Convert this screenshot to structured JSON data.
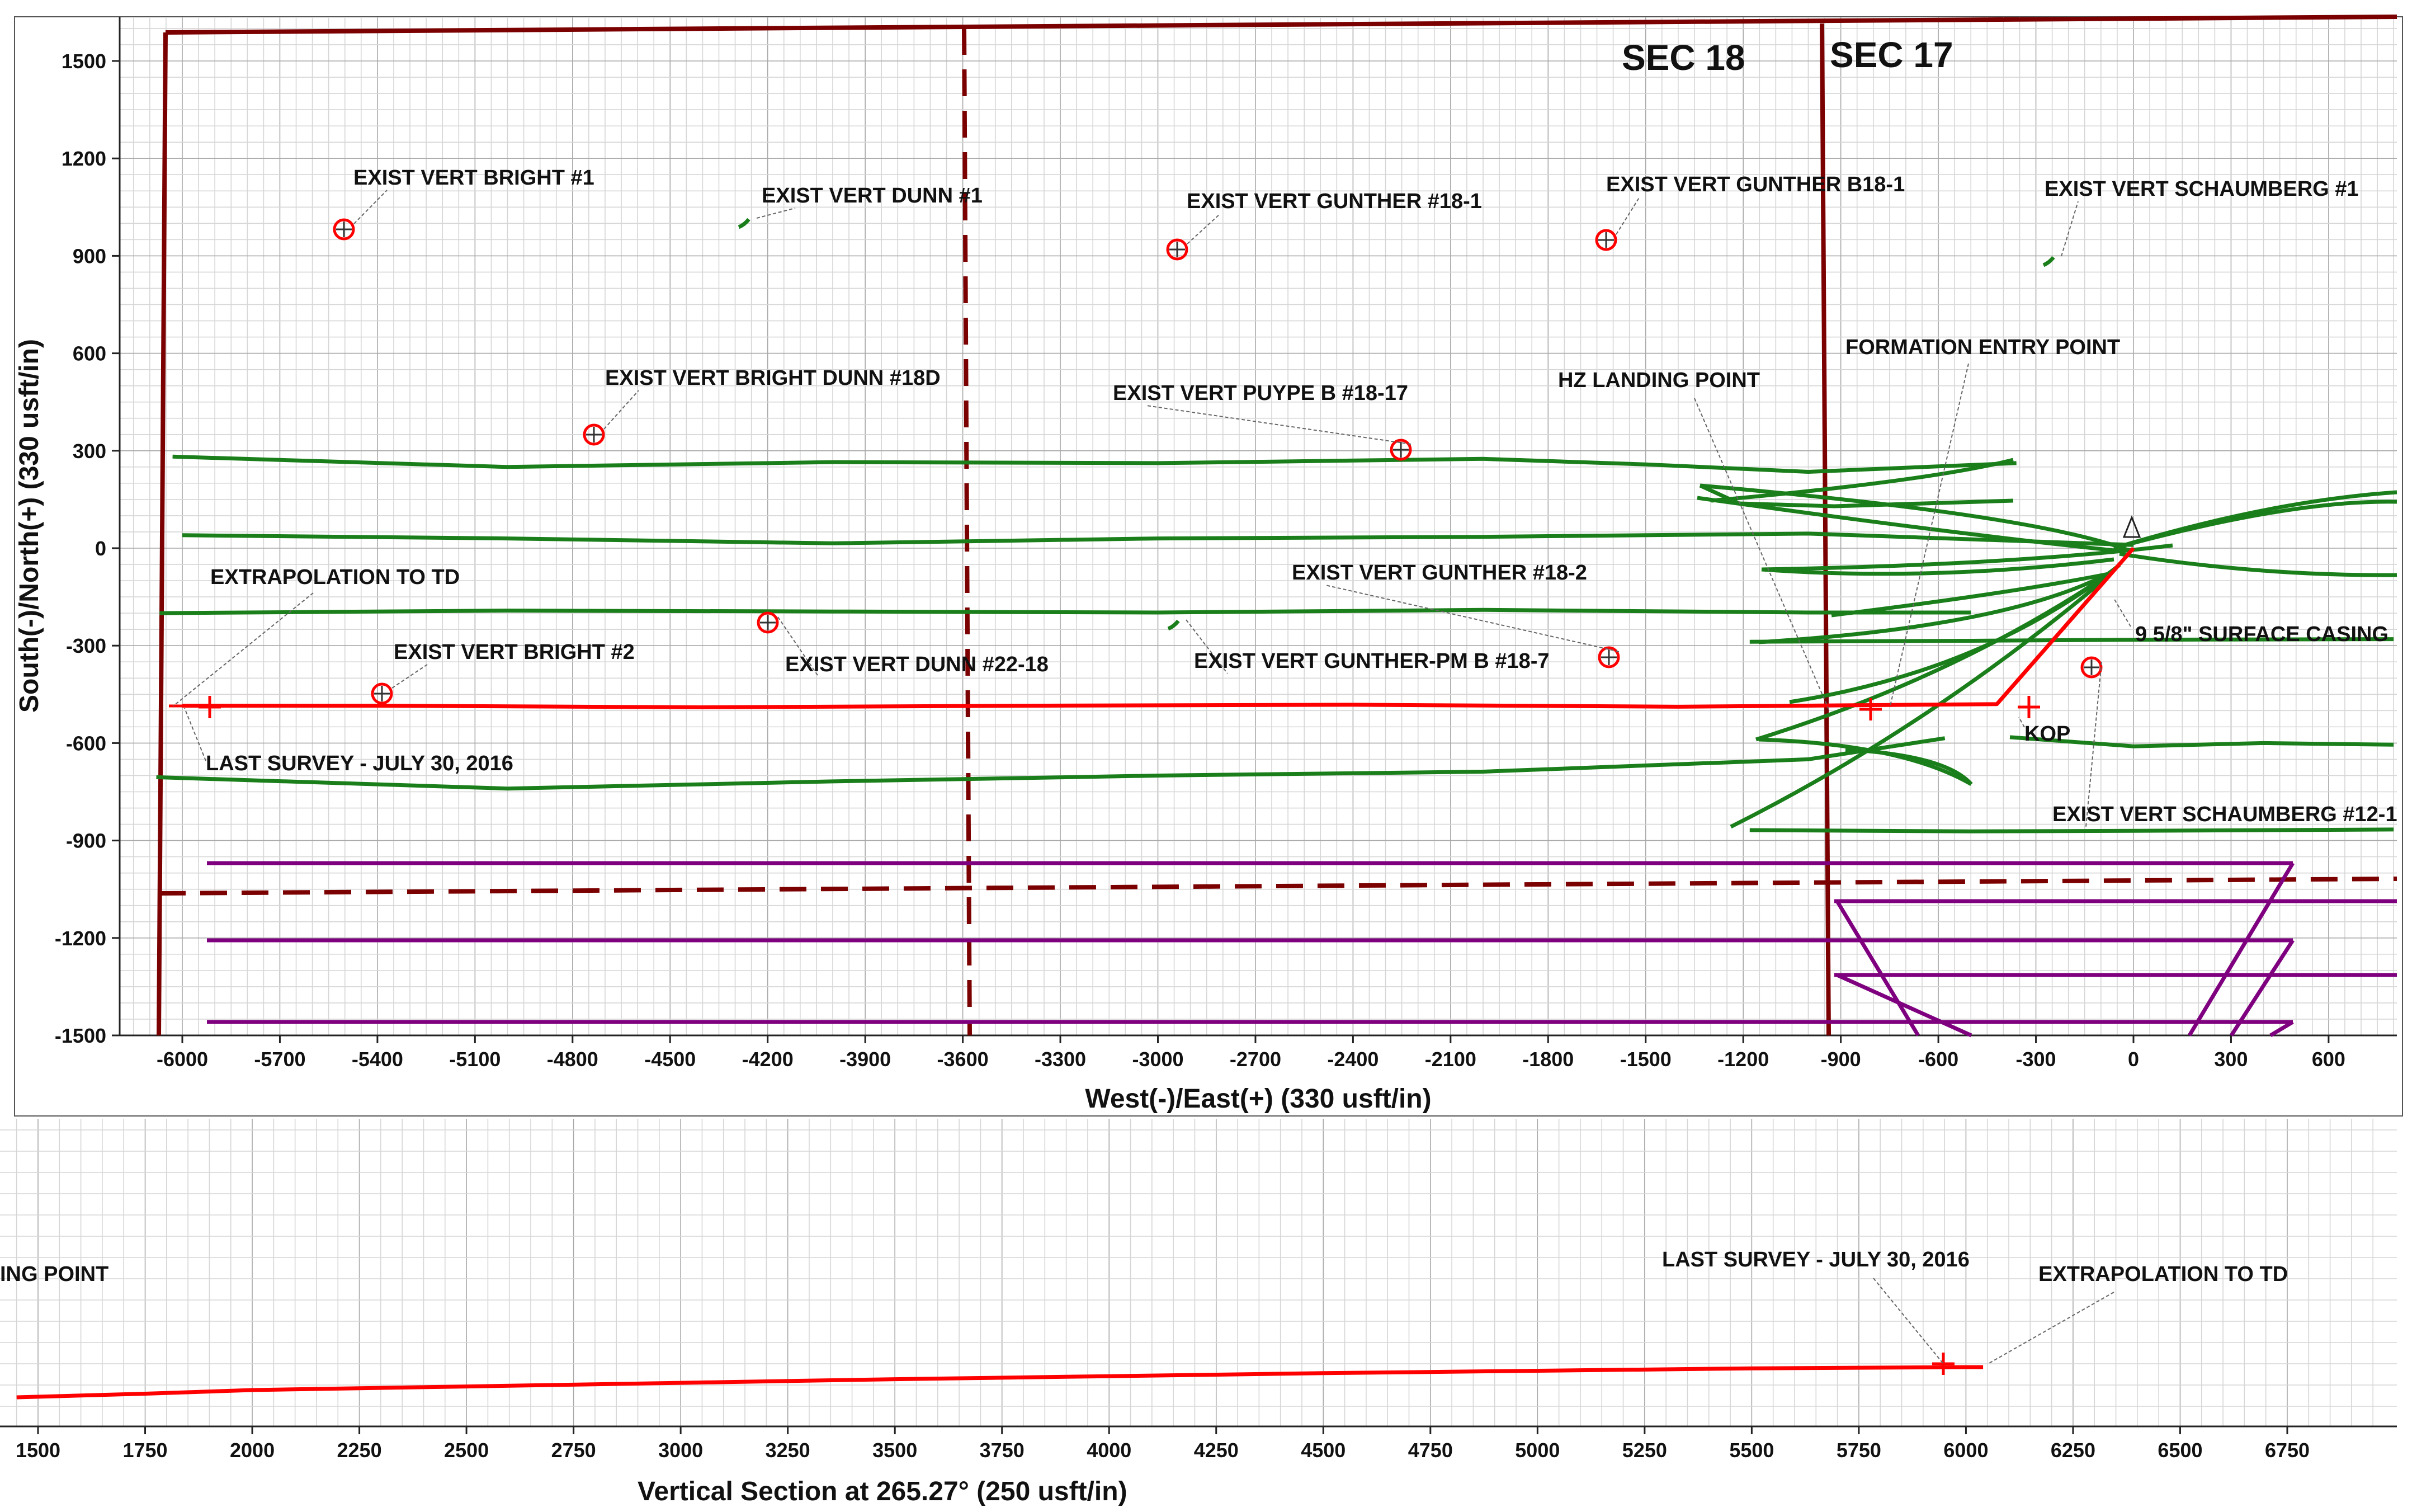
{
  "chart_data": [
    {
      "type": "line",
      "title": "",
      "xlabel": "West(-)/East(+) (330 usft/in)",
      "ylabel": "South(-)/North(+) (330 usft/in)",
      "xlim": [
        -6170,
        900
      ],
      "ylim": [
        -1500,
        1650
      ],
      "xticks": [
        -6000,
        -5700,
        -5400,
        -5100,
        -4800,
        -4500,
        -4200,
        -3900,
        -3600,
        -3300,
        -3000,
        -2700,
        -2400,
        -2100,
        -1800,
        -1500,
        -1200,
        -900,
        -600,
        -300,
        0,
        300,
        600
      ],
      "yticks": [
        1500,
        1200,
        900,
        600,
        300,
        0,
        -300,
        -600,
        -900,
        -1200,
        -1500
      ],
      "grid": true,
      "section_labels": [
        "SEC 18",
        "SEC 17"
      ],
      "colors": {
        "planned_wellbore": "#ff0000",
        "offset_wellbores": "#1a7f1a",
        "section_lines": "#7b0000",
        "lease_lines": "#7f007f",
        "markers": "#ff0000"
      },
      "series": [
        {
          "name": "",
          "role": "planned-wellbore",
          "x": [
            0,
            -420,
            -1400,
            -2400,
            -3400,
            -4400,
            -5400,
            -6000
          ],
          "y": [
            0,
            -480,
            -488,
            -482,
            -485,
            -490,
            -485,
            -485
          ]
        },
        {
          "name": "",
          "role": "offset-1",
          "x": [
            -6030,
            -5000,
            -4000,
            -3000,
            -2000,
            -1500,
            -1000,
            -360
          ],
          "y": [
            282,
            250,
            265,
            262,
            275,
            258,
            235,
            262
          ]
        },
        {
          "name": "",
          "role": "offset-2",
          "x": [
            -6000,
            -5000,
            -4000,
            -3000,
            -2000,
            -1000,
            0
          ],
          "y": [
            40,
            30,
            15,
            30,
            35,
            45,
            10
          ]
        },
        {
          "name": "",
          "role": "offset-3",
          "x": [
            -6070,
            -5000,
            -4000,
            -3000,
            -2000,
            -1000,
            -500
          ],
          "y": [
            -200,
            -192,
            -195,
            -198,
            -190,
            -198,
            -198
          ]
        },
        {
          "name": "",
          "role": "offset-4",
          "x": [
            -6080,
            -5000,
            -4000,
            -3000,
            -2000,
            -1000,
            -580
          ],
          "y": [
            -705,
            -740,
            -718,
            -700,
            -688,
            -650,
            -585
          ]
        },
        {
          "name": "",
          "role": "offset-5",
          "x": [
            -1180,
            -500,
            0,
            800
          ],
          "y": [
            -868,
            -872,
            -870,
            -866
          ]
        },
        {
          "name": "",
          "role": "offset-6",
          "x": [
            -1180,
            -500,
            0,
            800
          ],
          "y": [
            -288,
            -285,
            -282,
            -280
          ]
        },
        {
          "name": "",
          "role": "offset-7",
          "x": [
            -380,
            0,
            400,
            800
          ],
          "y": [
            -582,
            -610,
            -600,
            -605
          ]
        }
      ],
      "wells": [
        {
          "label": "EXIST VERT BRIGHT #1",
          "x": -5470,
          "y": 980
        },
        {
          "label": "EXIST VERT DUNN #1",
          "x": -4280,
          "y": 1000
        },
        {
          "label": "EXIST VERT GUNTHER #18-1",
          "x": -2950,
          "y": 925
        },
        {
          "label": "EXIST VERT GUNTHER B18-1",
          "x": -1600,
          "y": 955
        },
        {
          "label": "EXIST VERT SCHAUMBERG #1",
          "x": -250,
          "y": 880
        },
        {
          "label": "EXIST VERT BRIGHT DUNN #18D",
          "x": -4710,
          "y": 355
        },
        {
          "label": "EXIST VERT PUYPE B #18-17",
          "x": -2240,
          "y": 305
        },
        {
          "label": "EXIST VERT GUNTHER #18-2",
          "x": -1600,
          "y": -330
        },
        {
          "label": "EXIST VERT BRIGHT #2",
          "x": -5390,
          "y": -445
        },
        {
          "label": "EXIST VERT DUNN #22-18",
          "x": -4190,
          "y": -225
        },
        {
          "label": "EXIST VERT GUNTHER-PM B #18-7",
          "x": -2950,
          "y": -230
        },
        {
          "label": "EXIST VERT SCHAUMBERG #12-1",
          "x": -130,
          "y": -365
        }
      ],
      "annotations": [
        "HZ LANDING POINT",
        "FORMATION ENTRY POINT",
        "EXTRAPOLATION TO TD",
        "9 5/8\" SURFACE CASING",
        "KOP",
        "LAST SURVEY - JULY 30, 2016"
      ]
    },
    {
      "type": "line",
      "title": "",
      "xlabel": "Vertical Section at 265.27° (250 usft/in)",
      "ylabel": "",
      "xticks": [
        1500,
        1750,
        2000,
        2250,
        2500,
        2750,
        3000,
        3250,
        3500,
        3750,
        4000,
        4250,
        4500,
        4750,
        5000,
        5250,
        5500,
        5750,
        6000,
        6250,
        6500,
        6750
      ],
      "grid": true,
      "series": [
        {
          "name": "",
          "role": "planned-wellbore",
          "x": [
            1450,
            1750,
            2000,
            2500,
            3000,
            3500,
            4000,
            4500,
            5000,
            5500,
            6000,
            6040
          ],
          "y": [
            0,
            6,
            12,
            18,
            24,
            30,
            35,
            40,
            44,
            48,
            50,
            50
          ]
        }
      ],
      "annotations": [
        "ING POINT",
        "LAST SURVEY - JULY 30, 2016",
        "EXTRAPOLATION TO TD"
      ]
    }
  ]
}
